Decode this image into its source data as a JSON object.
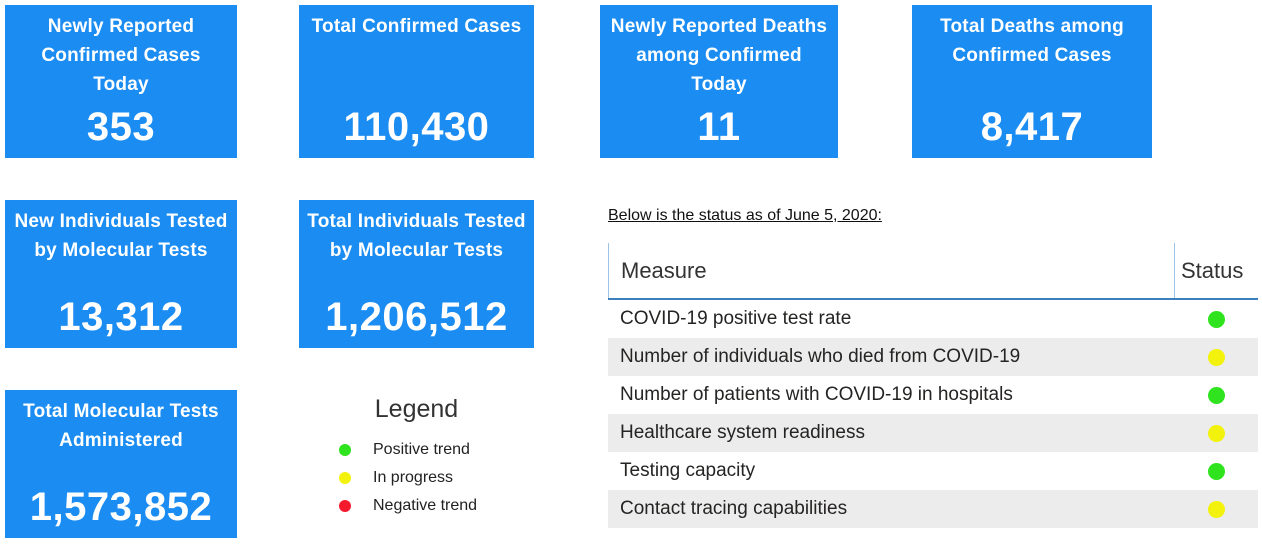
{
  "theme": {
    "card_bg": "#1a8cf2",
    "card_text": "#ffffff",
    "status_green": "#2fe41f",
    "status_yellow": "#f2f20c",
    "status_red": "#f5192d",
    "row_alt_bg": "#ececec",
    "header_underline_blue": "#3d7ebd",
    "column_line_blue": "#9dc3e6"
  },
  "cards": [
    {
      "title": "Newly Reported Confirmed Cases Today",
      "value": "353"
    },
    {
      "title": "Total Confirmed Cases",
      "value": "110,430"
    },
    {
      "title": "Newly Reported Deaths among Confirmed Today",
      "value": "11"
    },
    {
      "title": "Total Deaths among Confirmed Cases",
      "value": "8,417"
    },
    {
      "title": "New Individuals Tested by Molecular Tests",
      "value": "13,312"
    },
    {
      "title": "Total Individuals Tested by Molecular Tests",
      "value": "1,206,512"
    },
    {
      "title": "Total Molecular Tests Administered",
      "value": "1,573,852"
    }
  ],
  "legend": {
    "title": "Legend",
    "items": [
      {
        "label": "Positive trend",
        "status": "green"
      },
      {
        "label": "In progress",
        "status": "yellow"
      },
      {
        "label": "Negative trend",
        "status": "red"
      }
    ]
  },
  "status_section": {
    "subtitle": "Below is the status as of June 5, 2020:",
    "table": {
      "columns": [
        "Measure",
        "Status"
      ],
      "rows": [
        {
          "measure": "COVID-19 positive test rate",
          "status": "green"
        },
        {
          "measure": "Number of individuals who died from COVID-19",
          "status": "yellow"
        },
        {
          "measure": "Number of patients with COVID-19 in hospitals",
          "status": "green"
        },
        {
          "measure": "Healthcare system readiness",
          "status": "yellow"
        },
        {
          "measure": "Testing capacity",
          "status": "green"
        },
        {
          "measure": "Contact tracing capabilities",
          "status": "yellow"
        }
      ]
    }
  }
}
